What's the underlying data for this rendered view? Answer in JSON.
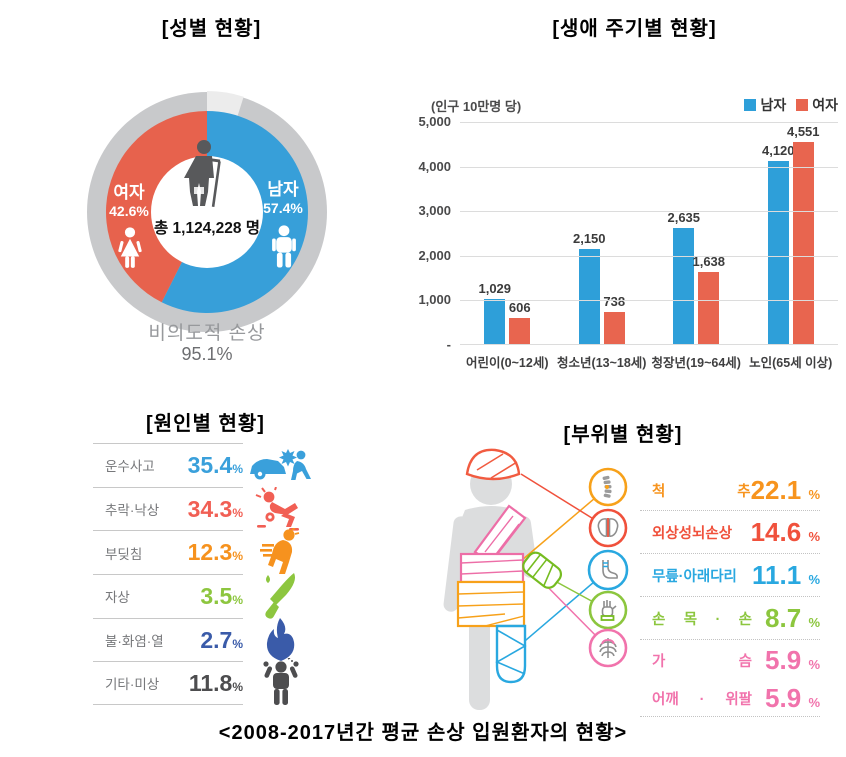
{
  "caption": "<2008-2017년간 평균 손상 입원환자의 현황>",
  "panels": {
    "gender": {
      "title": "[성별 현황]",
      "female": {
        "label": "여자",
        "value": "42.6%"
      },
      "male": {
        "label": "남자",
        "value": "57.4%"
      },
      "male_pct": 57.4,
      "unintentional_pct": 95.1,
      "total_label": "총 1,124,228 명",
      "unintentional": {
        "label": "비의도적 손상",
        "value": "95.1%"
      },
      "colors": {
        "male": "#379FD9",
        "female": "#E7624D",
        "ring": "#C8C9CB",
        "notch": "#ECECEC"
      }
    },
    "lifecycle": {
      "title": "[생애 주기별 현황]",
      "axis_note": "(인구 10만명 당)",
      "legend": [
        {
          "label": "남자",
          "color": "#2E9FD9"
        },
        {
          "label": "여자",
          "color": "#E8654F"
        }
      ],
      "y_ticks": [
        "5,000",
        "4,000",
        "3,000",
        "2,000",
        "1,000",
        "-"
      ],
      "categories": [
        "어린이(0~12세)",
        "청소년(13~18세)",
        "청장년(19~64세)",
        "노인(65세 이상)"
      ],
      "series": [
        {
          "name": "남자",
          "values": [
            1029,
            2150,
            2635,
            4120
          ],
          "labels": [
            "1,029",
            "2,150",
            "2,635",
            "4,120"
          ]
        },
        {
          "name": "여자",
          "values": [
            606,
            738,
            1638,
            4551
          ],
          "labels": [
            "606",
            "738",
            "1,638",
            "4,551"
          ]
        }
      ],
      "ymax": 5000
    },
    "cause": {
      "title": "[원인별 현황]",
      "rows": [
        {
          "label": "운수사고",
          "value": "35.4",
          "color": "#3AA0DB",
          "icon": "car-crash-icon"
        },
        {
          "label": "추락·낙상",
          "value": "34.3",
          "color": "#F15F54",
          "icon": "falling-person-icon"
        },
        {
          "label": "부딪침",
          "value": "12.3",
          "color": "#F6921E",
          "icon": "bump-collision-icon"
        },
        {
          "label": "자상",
          "value": "3.5",
          "color": "#8DC63F",
          "icon": "knife-icon"
        },
        {
          "label": "불·화염·열",
          "value": "2.7",
          "color": "#3A5BA9",
          "icon": "flame-icon"
        },
        {
          "label": "기타·미상",
          "value": "11.8",
          "color": "#4D4D4F",
          "icon": "unknown-person-icon"
        }
      ]
    },
    "bodypart": {
      "title": "[부위별 현황]",
      "rows": [
        {
          "label": "척 추",
          "value": "22.1",
          "color": "#F7941E",
          "icon": "spine-icon",
          "divider": true
        },
        {
          "label": "외상성뇌손상",
          "value": "14.6",
          "color": "#F0513C",
          "icon": "brain-icon",
          "divider": true
        },
        {
          "label": "무릎·아래다리",
          "value": "11.1",
          "color": "#29A8E0",
          "icon": "leg-foot-icon",
          "divider": true
        },
        {
          "label": "손 목 · 손",
          "value": "8.7",
          "color": "#8CC63E",
          "icon": "hand-icon",
          "divider": true
        },
        {
          "label": "가 슴",
          "value": "5.9",
          "color": "#F173AC",
          "icon": "chest-ribs-icon",
          "divider": false
        },
        {
          "label": "어깨 · 위팔",
          "value": "5.9",
          "color": "#F173AC",
          "icon": null,
          "divider": true
        }
      ]
    }
  },
  "chart_data": [
    {
      "type": "pie",
      "title": "[성별 현황]",
      "slices": [
        {
          "label": "남자",
          "value": 57.4
        },
        {
          "label": "여자",
          "value": 42.6
        }
      ],
      "center_label": "총 1,124,228 명",
      "annotation": "비의도적 손상 95.1%"
    },
    {
      "type": "bar",
      "title": "[생애 주기별 현황]",
      "ylabel": "(인구 10만명 당)",
      "categories": [
        "어린이(0~12세)",
        "청소년(13~18세)",
        "청장년(19~64세)",
        "노인(65세 이상)"
      ],
      "series": [
        {
          "name": "남자",
          "values": [
            1029,
            2150,
            2635,
            4120
          ]
        },
        {
          "name": "여자",
          "values": [
            606,
            738,
            1638,
            4551
          ]
        }
      ],
      "ylim": [
        0,
        5000
      ],
      "grid": true,
      "legend_position": "top-right"
    },
    {
      "type": "table",
      "title": "[원인별 현황]",
      "categories": [
        "운수사고",
        "추락·낙상",
        "부딪침",
        "자상",
        "불·화염·열",
        "기타·미상"
      ],
      "values": [
        35.4,
        34.3,
        12.3,
        3.5,
        2.7,
        11.8
      ],
      "unit": "%"
    },
    {
      "type": "table",
      "title": "[부위별 현황]",
      "categories": [
        "척추",
        "외상성뇌손상",
        "무릎·아래다리",
        "손목·손",
        "가슴",
        "어깨·위팔"
      ],
      "values": [
        22.1,
        14.6,
        11.1,
        8.7,
        5.9,
        5.9
      ],
      "unit": "%"
    }
  ]
}
